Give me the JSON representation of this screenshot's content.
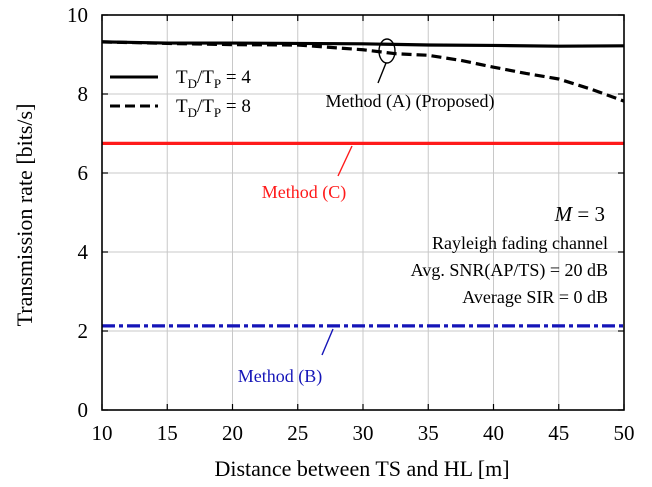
{
  "chart_data": {
    "type": "line",
    "xlabel": "Distance between TS and HL [m]",
    "ylabel": "Transmission rate [bits/s]",
    "xlim": [
      10,
      50
    ],
    "ylim": [
      0,
      10
    ],
    "xticks": [
      10,
      15,
      20,
      25,
      30,
      35,
      40,
      45,
      50
    ],
    "yticks": [
      0,
      2,
      4,
      6,
      8,
      10
    ],
    "grid": true,
    "legend_position": "top-left",
    "legend": [
      {
        "label_base": "T",
        "label_sub1": "D",
        "label_mid": "/T",
        "label_sub2": "P",
        "label_tail": " = 4",
        "style": "solid"
      },
      {
        "label_base": "T",
        "label_sub1": "D",
        "label_mid": "/T",
        "label_sub2": "P",
        "label_tail": " = 8",
        "style": "dashed"
      }
    ],
    "series": [
      {
        "group": "Method (A) (Proposed)",
        "legend_index": 0,
        "color": "#000000",
        "style": "solid",
        "x": [
          10,
          15,
          20,
          25,
          30,
          35,
          40,
          45,
          50
        ],
        "y": [
          9.32,
          9.29,
          9.29,
          9.28,
          9.27,
          9.24,
          9.23,
          9.21,
          9.22
        ]
      },
      {
        "group": "Method (A) (Proposed)",
        "legend_index": 1,
        "color": "#000000",
        "style": "dashed",
        "x": [
          10,
          15,
          20,
          25,
          30,
          32.5,
          35,
          37.5,
          40,
          42.5,
          45,
          47.5,
          50
        ],
        "y": [
          9.32,
          9.28,
          9.25,
          9.24,
          9.12,
          9.02,
          8.98,
          8.85,
          8.68,
          8.52,
          8.38,
          8.12,
          7.82
        ]
      },
      {
        "group": "Method (C)",
        "color": "#ff1a1a",
        "style": "solid",
        "x": [
          10,
          50
        ],
        "y": [
          6.75,
          6.75
        ]
      },
      {
        "group": "Method (B)",
        "color": "#1515b8",
        "style": "dashdot",
        "x": [
          10,
          50
        ],
        "y": [
          2.13,
          2.13
        ]
      }
    ],
    "annotations": {
      "method_a": "Method (A) (Proposed)",
      "method_c": "Method (C)",
      "method_b": "Method (B)"
    },
    "parameters": {
      "m_symbol": "M",
      "m_value": " = 3",
      "channel": "Rayleigh fading channel",
      "snr": "Avg. SNR(AP/TS) = 20 dB",
      "sir": "Average SIR = 0 dB"
    }
  }
}
